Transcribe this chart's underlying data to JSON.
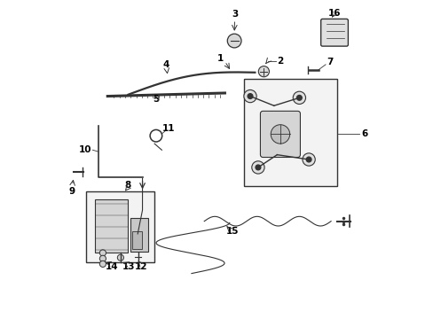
{
  "bg_color": "#ffffff",
  "line_color": "#333333",
  "label_color": "#000000",
  "figsize": [
    4.89,
    3.6
  ],
  "dpi": 100
}
